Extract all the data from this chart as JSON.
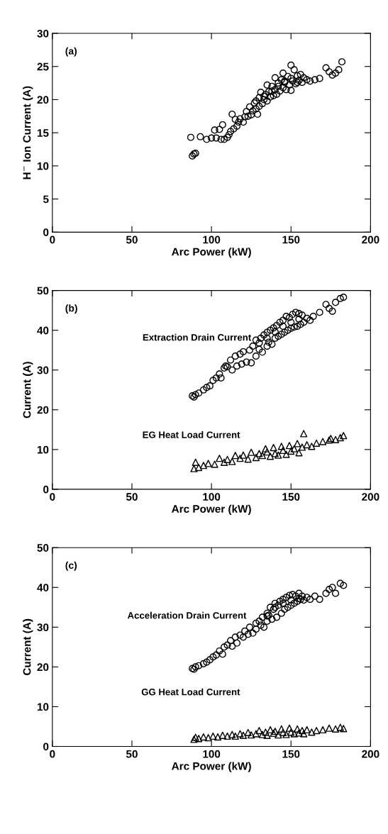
{
  "chart_data": [
    {
      "type": "scatter",
      "xlabel": "Arc Power (kW)",
      "ylabel": "H$^{−}$ Ion Current (A)",
      "xlim": [
        0,
        200
      ],
      "xticks": [
        0,
        50,
        100,
        150,
        200
      ],
      "ylim": [
        0,
        30
      ],
      "yticks": [
        0,
        5,
        10,
        15,
        20,
        25,
        30
      ],
      "grid": false,
      "annotations": [
        "(a)"
      ],
      "series": [
        {
          "color": "#000000",
          "marker": "circle",
          "x": [
            87,
            88,
            89,
            90,
            93,
            97,
            100,
            102,
            103,
            105,
            106,
            107,
            108,
            110,
            111,
            112,
            113,
            114,
            115,
            116,
            117,
            118,
            120,
            121,
            122,
            123,
            125,
            126,
            127,
            128,
            129,
            130,
            130,
            131,
            132,
            133,
            134,
            135,
            135,
            136,
            137,
            138,
            139,
            140,
            140,
            141,
            142,
            143,
            144,
            145,
            145,
            146,
            147,
            148,
            149,
            150,
            150,
            151,
            152,
            153,
            154,
            155,
            156,
            157,
            158,
            160,
            162,
            165,
            168,
            172,
            174,
            176,
            178,
            180,
            182,
            138,
            142,
            146,
            150,
            154,
            133,
            128,
            124
          ],
          "values": [
            14.3,
            11.5,
            11.8,
            11.9,
            14.4,
            14.0,
            14.2,
            15.4,
            14.2,
            15.5,
            14.0,
            16.2,
            14.0,
            14.3,
            14.7,
            15.2,
            17.8,
            15.6,
            17.0,
            16.0,
            16.6,
            17.1,
            16.6,
            17.4,
            18.2,
            17.5,
            17.7,
            18.3,
            19.5,
            18.6,
            17.8,
            19.0,
            20.3,
            21.1,
            19.4,
            20.0,
            20.8,
            19.8,
            22.2,
            21.2,
            20.4,
            22.0,
            20.6,
            21.5,
            23.3,
            20.8,
            22.5,
            21.3,
            23.0,
            21.8,
            24.0,
            22.6,
            21.5,
            23.5,
            22.2,
            25.2,
            21.4,
            22.8,
            24.5,
            22.4,
            23.6,
            22.9,
            23.8,
            22.6,
            23.3,
            23.0,
            22.8,
            23.0,
            23.2,
            24.8,
            24.2,
            23.7,
            24.0,
            24.5,
            25.7,
            21.3,
            22.0,
            22.8,
            23.2,
            22.6,
            20.5,
            19.8,
            18.9
          ]
        }
      ]
    },
    {
      "type": "scatter",
      "xlabel": "Arc Power (kW)",
      "ylabel": "Current (A)",
      "xlim": [
        0,
        200
      ],
      "xticks": [
        0,
        50,
        100,
        150,
        200
      ],
      "ylim": [
        0,
        50
      ],
      "yticks": [
        0,
        10,
        20,
        30,
        40,
        50
      ],
      "grid": false,
      "annotations": [
        "(b)",
        {
          "text": "Extraction Drain Current",
          "x": 125,
          "y": 38
        },
        "EG Heat Load Current"
      ],
      "series": [
        {
          "color": "#000000",
          "marker": "circle",
          "x": [
            88,
            89,
            90,
            92,
            95,
            97,
            99,
            101,
            103,
            105,
            106,
            108,
            109,
            110,
            112,
            113,
            115,
            116,
            118,
            119,
            120,
            122,
            124,
            125,
            126,
            128,
            128,
            130,
            131,
            132,
            133,
            135,
            135,
            136,
            137,
            138,
            139,
            140,
            141,
            142,
            143,
            144,
            145,
            146,
            147,
            148,
            149,
            150,
            151,
            152,
            153,
            154,
            155,
            156,
            157,
            158,
            160,
            162,
            164,
            168,
            172,
            174,
            176,
            178,
            181,
            183,
            140,
            145,
            150,
            155,
            135,
            130
          ],
          "values": [
            23.5,
            23.2,
            23.8,
            24.2,
            25.0,
            25.6,
            26.0,
            27.4,
            28.0,
            29.0,
            28.0,
            30.5,
            31.0,
            30.8,
            32.5,
            30.0,
            33.5,
            31.0,
            34.0,
            31.5,
            34.6,
            32.0,
            35.0,
            31.8,
            36.0,
            33.5,
            37.5,
            35.2,
            38.0,
            34.5,
            38.8,
            36.0,
            39.5,
            37.0,
            40.0,
            36.5,
            40.6,
            38.0,
            41.2,
            38.5,
            42.0,
            39.0,
            42.5,
            39.5,
            43.5,
            40.0,
            43.2,
            40.5,
            44.0,
            40.8,
            44.5,
            41.0,
            44.2,
            41.5,
            43.8,
            42.0,
            43.0,
            42.5,
            43.5,
            44.5,
            46.5,
            45.5,
            44.8,
            47.0,
            48.0,
            48.3,
            39.6,
            41.0,
            42.0,
            42.8,
            38.0,
            36.8
          ]
        },
        {
          "color": "#000000",
          "marker": "triangle",
          "x": [
            89,
            90,
            92,
            95,
            98,
            102,
            105,
            108,
            110,
            113,
            115,
            118,
            120,
            123,
            125,
            128,
            130,
            132,
            134,
            135,
            137,
            139,
            140,
            142,
            144,
            145,
            147,
            149,
            150,
            152,
            154,
            155,
            157,
            158,
            160,
            163,
            166,
            170,
            174,
            178,
            181,
            183,
            175
          ],
          "values": [
            5.2,
            6.8,
            5.5,
            6.0,
            6.5,
            6.3,
            7.8,
            6.8,
            7.5,
            7.0,
            8.5,
            7.8,
            8.6,
            7.6,
            9.3,
            8.0,
            9.0,
            8.5,
            10.2,
            9.4,
            8.3,
            10.5,
            9.0,
            8.6,
            10.8,
            9.8,
            8.8,
            11.0,
            9.6,
            10.2,
            11.5,
            9.2,
            10.6,
            14.0,
            11.2,
            10.8,
            11.6,
            12.0,
            12.4,
            12.5,
            13.0,
            13.5,
            12.8
          ]
        }
      ]
    },
    {
      "type": "scatter",
      "xlabel": "Arc Power (kW)",
      "ylabel": "Current (A)",
      "xlim": [
        0,
        200
      ],
      "xticks": [
        0,
        50,
        100,
        150,
        200
      ],
      "ylim": [
        0,
        50
      ],
      "yticks": [
        0,
        10,
        20,
        30,
        40,
        50
      ],
      "grid": false,
      "annotations": [
        "(c)",
        "Acceleration Drain Current",
        "GG Heat Load Current"
      ],
      "series": [
        {
          "color": "#000000",
          "marker": "circle",
          "x": [
            88,
            89,
            90,
            92,
            95,
            97,
            99,
            101,
            103,
            105,
            107,
            108,
            110,
            112,
            113,
            115,
            116,
            118,
            120,
            121,
            123,
            124,
            126,
            128,
            128,
            130,
            131,
            132,
            133,
            135,
            135,
            136,
            137,
            138,
            139,
            140,
            141,
            142,
            143,
            144,
            145,
            146,
            147,
            148,
            149,
            150,
            151,
            152,
            153,
            154,
            155,
            156,
            157,
            158,
            160,
            162,
            165,
            168,
            172,
            174,
            176,
            178,
            181,
            183,
            140,
            145,
            150,
            155,
            135
          ],
          "values": [
            19.6,
            19.4,
            20.0,
            20.3,
            20.8,
            21.2,
            21.8,
            22.5,
            23.0,
            24.0,
            23.2,
            25.0,
            25.5,
            26.6,
            25.2,
            27.5,
            26.0,
            28.0,
            27.5,
            29.0,
            28.2,
            30.0,
            28.5,
            31.0,
            29.5,
            31.5,
            30.5,
            32.5,
            30.0,
            33.5,
            31.5,
            33.0,
            35.0,
            32.0,
            34.5,
            36.0,
            32.5,
            35.5,
            36.5,
            33.5,
            37.0,
            34.5,
            37.5,
            35.0,
            38.0,
            35.5,
            38.2,
            36.0,
            37.8,
            36.5,
            38.5,
            37.0,
            37.8,
            36.8,
            37.5,
            37.0,
            37.8,
            37.0,
            38.5,
            39.5,
            40.0,
            38.5,
            41.0,
            40.5,
            35.0,
            36.0,
            36.8,
            37.2,
            32.8
          ]
        },
        {
          "color": "#000000",
          "marker": "triangle",
          "x": [
            89,
            90,
            92,
            95,
            98,
            101,
            104,
            107,
            110,
            113,
            115,
            118,
            120,
            123,
            125,
            128,
            130,
            132,
            134,
            135,
            137,
            139,
            140,
            142,
            144,
            145,
            147,
            149,
            150,
            152,
            154,
            155,
            157,
            158,
            160,
            163,
            166,
            170,
            174,
            178,
            181,
            183
          ],
          "values": [
            1.8,
            2.3,
            2.0,
            2.4,
            2.2,
            2.6,
            2.4,
            2.8,
            2.6,
            3.0,
            2.6,
            3.2,
            2.8,
            3.5,
            2.9,
            3.2,
            4.0,
            3.0,
            3.6,
            2.8,
            4.2,
            3.3,
            3.8,
            2.9,
            4.4,
            3.5,
            3.0,
            4.6,
            3.6,
            3.2,
            4.4,
            3.4,
            4.0,
            3.2,
            4.2,
            3.6,
            4.0,
            4.2,
            4.6,
            4.4,
            4.8,
            4.5
          ]
        }
      ]
    }
  ]
}
